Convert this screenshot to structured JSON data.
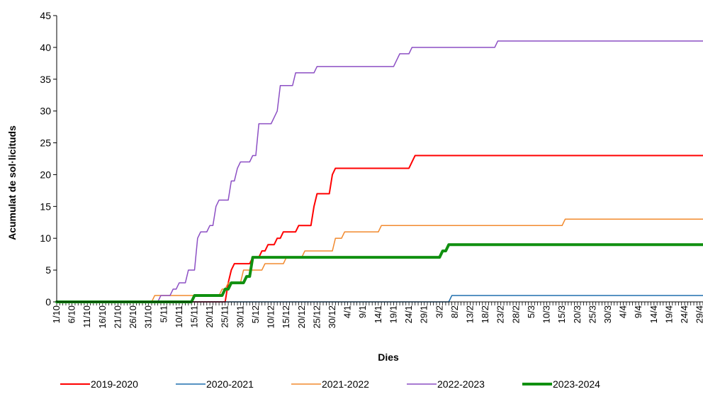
{
  "chart_data": {
    "type": "line",
    "title": "",
    "xlabel": "Dies",
    "ylabel": "Acumulat de sol·licituds",
    "ylim": [
      0,
      45
    ],
    "yticks": [
      0,
      5,
      10,
      15,
      20,
      25,
      30,
      35,
      40,
      45
    ],
    "xlim": [
      0,
      211
    ],
    "grid": false,
    "legend_position": "bottom",
    "x_ticks": [
      {
        "day": 0,
        "label": "1/10"
      },
      {
        "day": 5,
        "label": "6/10"
      },
      {
        "day": 10,
        "label": "11/10"
      },
      {
        "day": 15,
        "label": "16/10"
      },
      {
        "day": 20,
        "label": "21/10"
      },
      {
        "day": 25,
        "label": "26/10"
      },
      {
        "day": 30,
        "label": "31/10"
      },
      {
        "day": 35,
        "label": "5/11"
      },
      {
        "day": 40,
        "label": "10/11"
      },
      {
        "day": 45,
        "label": "15/11"
      },
      {
        "day": 50,
        "label": "20/11"
      },
      {
        "day": 55,
        "label": "25/11"
      },
      {
        "day": 60,
        "label": "30/11"
      },
      {
        "day": 65,
        "label": "5/12"
      },
      {
        "day": 70,
        "label": "10/12"
      },
      {
        "day": 75,
        "label": "15/12"
      },
      {
        "day": 80,
        "label": "20/12"
      },
      {
        "day": 85,
        "label": "25/12"
      },
      {
        "day": 90,
        "label": "30/12"
      },
      {
        "day": 95,
        "label": "4/1"
      },
      {
        "day": 100,
        "label": "9/1"
      },
      {
        "day": 105,
        "label": "14/1"
      },
      {
        "day": 110,
        "label": "19/1"
      },
      {
        "day": 115,
        "label": "24/1"
      },
      {
        "day": 120,
        "label": "29/1"
      },
      {
        "day": 125,
        "label": "3/2"
      },
      {
        "day": 130,
        "label": "8/2"
      },
      {
        "day": 135,
        "label": "13/2"
      },
      {
        "day": 140,
        "label": "18/2"
      },
      {
        "day": 145,
        "label": "23/2"
      },
      {
        "day": 150,
        "label": "28/2"
      },
      {
        "day": 155,
        "label": "5/3"
      },
      {
        "day": 160,
        "label": "10/3"
      },
      {
        "day": 165,
        "label": "15/3"
      },
      {
        "day": 170,
        "label": "20/3"
      },
      {
        "day": 175,
        "label": "25/3"
      },
      {
        "day": 180,
        "label": "30/3"
      },
      {
        "day": 185,
        "label": "4/4"
      },
      {
        "day": 190,
        "label": "9/4"
      },
      {
        "day": 195,
        "label": "14/4"
      },
      {
        "day": 200,
        "label": "19/4"
      },
      {
        "day": 205,
        "label": "24/4"
      },
      {
        "day": 210,
        "label": "29/4"
      }
    ],
    "series": [
      {
        "name": "2019-2020",
        "color": "#ff0000",
        "width": 2,
        "points": [
          [
            0,
            0
          ],
          [
            55,
            0
          ],
          [
            56,
            3
          ],
          [
            57,
            5
          ],
          [
            58,
            6
          ],
          [
            62,
            6
          ],
          [
            63,
            6
          ],
          [
            64,
            7
          ],
          [
            66,
            7
          ],
          [
            67,
            8
          ],
          [
            68,
            8
          ],
          [
            69,
            9
          ],
          [
            71,
            9
          ],
          [
            72,
            10
          ],
          [
            73,
            10
          ],
          [
            74,
            11
          ],
          [
            78,
            11
          ],
          [
            79,
            12
          ],
          [
            83,
            12
          ],
          [
            84,
            15
          ],
          [
            85,
            17
          ],
          [
            89,
            17
          ],
          [
            90,
            20
          ],
          [
            91,
            21
          ],
          [
            115,
            21
          ],
          [
            116,
            22
          ],
          [
            117,
            23
          ],
          [
            211,
            23
          ]
        ]
      },
      {
        "name": "2020-2021",
        "color": "#1f6fad",
        "width": 1.5,
        "points": [
          [
            0,
            0
          ],
          [
            128,
            0
          ],
          [
            129,
            1
          ],
          [
            211,
            1
          ]
        ]
      },
      {
        "name": "2021-2022",
        "color": "#f28a2e",
        "width": 1.5,
        "points": [
          [
            0,
            0
          ],
          [
            31,
            0
          ],
          [
            32,
            1
          ],
          [
            46,
            1
          ],
          [
            53,
            1
          ],
          [
            54,
            2
          ],
          [
            55,
            2
          ],
          [
            56,
            3
          ],
          [
            60,
            3
          ],
          [
            61,
            5
          ],
          [
            67,
            5
          ],
          [
            68,
            6
          ],
          [
            74,
            6
          ],
          [
            75,
            7
          ],
          [
            80,
            7
          ],
          [
            81,
            8
          ],
          [
            90,
            8
          ],
          [
            91,
            10
          ],
          [
            93,
            10
          ],
          [
            94,
            11
          ],
          [
            105,
            11
          ],
          [
            106,
            12
          ],
          [
            165,
            12
          ],
          [
            166,
            13
          ],
          [
            211,
            13
          ]
        ]
      },
      {
        "name": "2022-2023",
        "color": "#8c4fc4",
        "width": 1.5,
        "points": [
          [
            0,
            0
          ],
          [
            33,
            0
          ],
          [
            34,
            1
          ],
          [
            37,
            1
          ],
          [
            38,
            2
          ],
          [
            39,
            2
          ],
          [
            40,
            3
          ],
          [
            42,
            3
          ],
          [
            43,
            5
          ],
          [
            45,
            5
          ],
          [
            46,
            10
          ],
          [
            47,
            11
          ],
          [
            49,
            11
          ],
          [
            50,
            12
          ],
          [
            51,
            12
          ],
          [
            52,
            15
          ],
          [
            53,
            16
          ],
          [
            56,
            16
          ],
          [
            57,
            19
          ],
          [
            58,
            19
          ],
          [
            59,
            21
          ],
          [
            60,
            22
          ],
          [
            63,
            22
          ],
          [
            64,
            23
          ],
          [
            65,
            23
          ],
          [
            66,
            28
          ],
          [
            70,
            28
          ],
          [
            71,
            29
          ],
          [
            72,
            30
          ],
          [
            73,
            34
          ],
          [
            77,
            34
          ],
          [
            78,
            36
          ],
          [
            84,
            36
          ],
          [
            85,
            37
          ],
          [
            110,
            37
          ],
          [
            111,
            38
          ],
          [
            112,
            39
          ],
          [
            115,
            39
          ],
          [
            116,
            40
          ],
          [
            143,
            40
          ],
          [
            144,
            41
          ],
          [
            211,
            41
          ]
        ]
      },
      {
        "name": "2023-2024",
        "color": "#109010",
        "width": 4,
        "points": [
          [
            0,
            0
          ],
          [
            44,
            0
          ],
          [
            45,
            1
          ],
          [
            54,
            1
          ],
          [
            55,
            2
          ],
          [
            56,
            2
          ],
          [
            57,
            3
          ],
          [
            61,
            3
          ],
          [
            62,
            4
          ],
          [
            63,
            4
          ],
          [
            64,
            7
          ],
          [
            125,
            7
          ],
          [
            126,
            8
          ],
          [
            127,
            8
          ],
          [
            128,
            9
          ],
          [
            211,
            9
          ]
        ]
      }
    ]
  }
}
